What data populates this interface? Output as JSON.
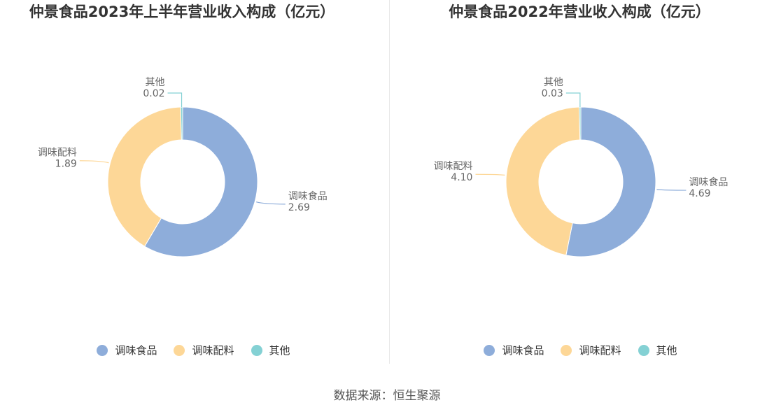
{
  "source_text": "数据来源：恒生聚源",
  "colors": {
    "seasoning_food": "#8eadda",
    "seasoning_ingredients": "#fdd797",
    "other": "#84d1d4"
  },
  "chart_data": [
    {
      "type": "pie",
      "donut": true,
      "title": "仲景食品2023年上半年营业收入构成（亿元）",
      "unit": "亿元",
      "legend_position": "bottom",
      "categories": [
        "调味食品",
        "调味配料",
        "其他"
      ],
      "values": [
        2.69,
        1.89,
        0.02
      ],
      "value_labels": [
        "2.69",
        "1.89",
        "0.02"
      ]
    },
    {
      "type": "pie",
      "donut": true,
      "title": "仲景食品2022年营业收入构成（亿元）",
      "unit": "亿元",
      "legend_position": "bottom",
      "categories": [
        "调味食品",
        "调味配料",
        "其他"
      ],
      "values": [
        4.69,
        4.1,
        0.03
      ],
      "value_labels": [
        "4.69",
        "4.10",
        "0.03"
      ]
    }
  ]
}
